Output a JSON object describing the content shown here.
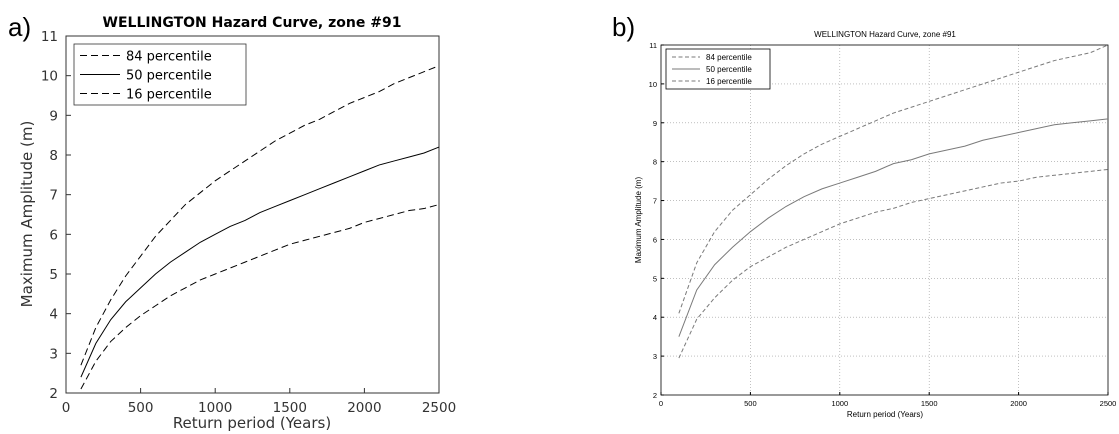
{
  "panels": {
    "a": {
      "letter": "a)"
    },
    "b": {
      "letter": "b)"
    }
  },
  "colors": {
    "a_line": "#000000",
    "a_axis": "#333333",
    "b_line": "#7a7a7a",
    "b_axis": "#000000",
    "b_grid": "#9a9a9a"
  },
  "chart_data": [
    {
      "type": "line",
      "title": "WELLINGTON Hazard Curve, zone #91",
      "xlabel": "Return period (Years)",
      "ylabel": "Maximum Amplitude (m)",
      "xlim": [
        0,
        2500
      ],
      "ylim": [
        2,
        11
      ],
      "xticks": [
        "0",
        "500",
        "1000",
        "1500",
        "2000",
        "2500"
      ],
      "yticks": [
        "2",
        "3",
        "4",
        "5",
        "6",
        "7",
        "8",
        "9",
        "10",
        "11"
      ],
      "grid": false,
      "legend_position": "top-left",
      "x": [
        100,
        200,
        300,
        400,
        500,
        600,
        700,
        800,
        900,
        1000,
        1100,
        1200,
        1300,
        1400,
        1500,
        1600,
        1700,
        1800,
        1900,
        2000,
        2100,
        2200,
        2300,
        2400,
        2500
      ],
      "series": [
        {
          "name": "84 percentile",
          "style": "dashed",
          "values": [
            2.7,
            3.65,
            4.35,
            4.95,
            5.45,
            5.95,
            6.35,
            6.75,
            7.05,
            7.35,
            7.6,
            7.85,
            8.1,
            8.35,
            8.55,
            8.75,
            8.9,
            9.1,
            9.3,
            9.45,
            9.6,
            9.8,
            9.95,
            10.1,
            10.25
          ]
        },
        {
          "name": "50 percentile",
          "style": "solid",
          "values": [
            2.4,
            3.25,
            3.85,
            4.3,
            4.65,
            5.0,
            5.3,
            5.55,
            5.8,
            6.0,
            6.2,
            6.35,
            6.55,
            6.7,
            6.85,
            7.0,
            7.15,
            7.3,
            7.45,
            7.6,
            7.75,
            7.85,
            7.95,
            8.05,
            8.2
          ]
        },
        {
          "name": "16 percentile",
          "style": "dashed",
          "values": [
            2.1,
            2.8,
            3.3,
            3.65,
            3.95,
            4.2,
            4.45,
            4.65,
            4.85,
            5.0,
            5.15,
            5.3,
            5.45,
            5.6,
            5.75,
            5.85,
            5.95,
            6.05,
            6.15,
            6.3,
            6.4,
            6.5,
            6.6,
            6.65,
            6.75
          ]
        }
      ]
    },
    {
      "type": "line",
      "title": "WELLINGTON Hazard Curve, zone #91",
      "xlabel": "Return period (Years)",
      "ylabel": "Maximum Amplitude (m)",
      "xlim": [
        0,
        2500
      ],
      "ylim": [
        2,
        11
      ],
      "xticks": [
        "0",
        "500",
        "1000",
        "1500",
        "2000",
        "2500"
      ],
      "yticks": [
        "2",
        "3",
        "4",
        "5",
        "6",
        "7",
        "8",
        "9",
        "10",
        "11"
      ],
      "grid": true,
      "legend_position": "top-left",
      "x": [
        100,
        200,
        300,
        400,
        500,
        600,
        700,
        800,
        900,
        1000,
        1100,
        1200,
        1300,
        1400,
        1500,
        1600,
        1700,
        1800,
        1900,
        2000,
        2100,
        2200,
        2300,
        2400,
        2500
      ],
      "series": [
        {
          "name": "84 percentile",
          "style": "dashed",
          "values": [
            4.1,
            5.4,
            6.2,
            6.75,
            7.15,
            7.55,
            7.9,
            8.2,
            8.45,
            8.65,
            8.85,
            9.05,
            9.25,
            9.4,
            9.55,
            9.7,
            9.85,
            10.0,
            10.15,
            10.3,
            10.45,
            10.6,
            10.7,
            10.8,
            11.0
          ]
        },
        {
          "name": "50 percentile",
          "style": "solid",
          "values": [
            3.5,
            4.7,
            5.35,
            5.8,
            6.2,
            6.55,
            6.85,
            7.1,
            7.3,
            7.45,
            7.6,
            7.75,
            7.95,
            8.05,
            8.2,
            8.3,
            8.4,
            8.55,
            8.65,
            8.75,
            8.85,
            8.95,
            9.0,
            9.05,
            9.1
          ]
        },
        {
          "name": "16 percentile",
          "style": "dashed",
          "values": [
            2.95,
            3.95,
            4.5,
            4.95,
            5.3,
            5.55,
            5.8,
            6.0,
            6.2,
            6.4,
            6.55,
            6.7,
            6.8,
            6.95,
            7.05,
            7.15,
            7.25,
            7.35,
            7.45,
            7.5,
            7.6,
            7.65,
            7.7,
            7.75,
            7.8
          ]
        }
      ]
    }
  ]
}
